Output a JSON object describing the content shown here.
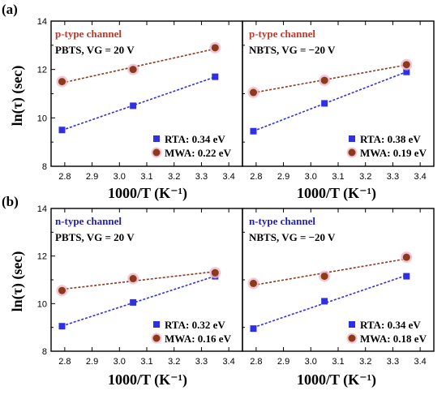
{
  "colors": {
    "rta": "#2f2fe6",
    "mwa": "#8b3a1e",
    "mwa_halo": "#f0b8c8",
    "p_title": "#c0392b",
    "n_title": "#1f1fb4",
    "axis": "#000000"
  },
  "rows": [
    {
      "label": "(a)",
      "ylabel": "ln(τ) (sec)",
      "xlabel": "1000/T  (K⁻¹)"
    },
    {
      "label": "(b)",
      "ylabel": "ln(τ) (sec)",
      "xlabel": "1000/T  (K⁻¹)"
    }
  ],
  "chart_data": [
    {
      "type": "scatter",
      "title": "p-type channel",
      "subtitle": "PBTS, VG = 20 V",
      "xlim": [
        2.75,
        3.45
      ],
      "ylim": [
        8,
        14
      ],
      "xticks": [
        "2.8",
        "2.9",
        "3.0",
        "3.1",
        "3.2",
        "3.3",
        "3.4"
      ],
      "yticks": [
        "8",
        "10",
        "12",
        "14"
      ],
      "series": [
        {
          "name": "RTA: 0.34 eV",
          "x": [
            2.79,
            3.05,
            3.35
          ],
          "y": [
            9.5,
            10.5,
            11.7
          ]
        },
        {
          "name": "MWA: 0.22 eV",
          "x": [
            2.79,
            3.05,
            3.35
          ],
          "y": [
            11.5,
            12.0,
            12.9
          ]
        }
      ]
    },
    {
      "type": "scatter",
      "title": "p-type channel",
      "subtitle": "NBTS, VG = −20 V",
      "xlim": [
        2.75,
        3.45
      ],
      "ylim": [
        8,
        14
      ],
      "xticks": [
        "2.8",
        "2.9",
        "3.0",
        "3.1",
        "3.2",
        "3.3",
        "3.4"
      ],
      "yticks": [],
      "series": [
        {
          "name": "RTA: 0.38 eV",
          "x": [
            2.79,
            3.05,
            3.35
          ],
          "y": [
            9.45,
            10.6,
            11.9
          ]
        },
        {
          "name": "MWA: 0.19 eV",
          "x": [
            2.79,
            3.05,
            3.35
          ],
          "y": [
            11.05,
            11.55,
            12.2
          ]
        }
      ]
    },
    {
      "type": "scatter",
      "title": "n-type channel",
      "subtitle": "PBTS, VG = 20 V",
      "xlim": [
        2.75,
        3.45
      ],
      "ylim": [
        8,
        14
      ],
      "xticks": [
        "2.8",
        "2.9",
        "3.0",
        "3.1",
        "3.2",
        "3.3",
        "3.4"
      ],
      "yticks": [
        "8",
        "10",
        "12",
        "14"
      ],
      "series": [
        {
          "name": "RTA: 0.32 eV",
          "x": [
            2.79,
            3.05,
            3.35
          ],
          "y": [
            9.05,
            10.05,
            11.15
          ]
        },
        {
          "name": "MWA: 0.16 eV",
          "x": [
            2.79,
            3.05,
            3.35
          ],
          "y": [
            10.55,
            11.05,
            11.3
          ]
        }
      ]
    },
    {
      "type": "scatter",
      "title": "n-type channel",
      "subtitle": "NBTS, VG = −20 V",
      "xlim": [
        2.75,
        3.45
      ],
      "ylim": [
        8,
        14
      ],
      "xticks": [
        "2.8",
        "2.9",
        "3.0",
        "3.1",
        "3.2",
        "3.3",
        "3.4"
      ],
      "yticks": [],
      "series": [
        {
          "name": "RTA: 0.34 eV",
          "x": [
            2.79,
            3.05,
            3.35
          ],
          "y": [
            8.95,
            10.1,
            11.15
          ]
        },
        {
          "name": "MWA: 0.18 eV",
          "x": [
            2.79,
            3.05,
            3.35
          ],
          "y": [
            10.85,
            11.15,
            11.95
          ]
        }
      ]
    }
  ]
}
